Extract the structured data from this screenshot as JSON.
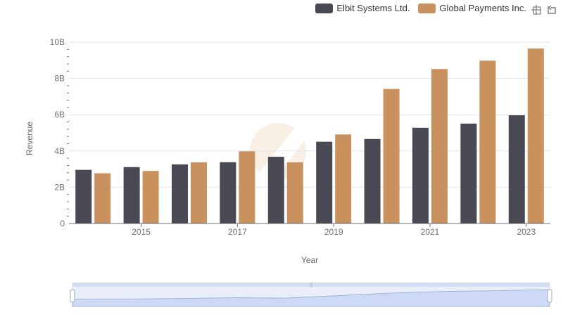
{
  "legend": [
    {
      "name": "Elbit Systems Ltd.",
      "color": "#4a4a55"
    },
    {
      "name": "Global Payments Inc.",
      "color": "#c8915e"
    }
  ],
  "toolbox": {
    "zoom_icon": "zoom-icon",
    "restore_icon": "restore-icon"
  },
  "chart_data": {
    "type": "bar",
    "xlabel": "Year",
    "ylabel": "Revenue",
    "x_tick_labels": [
      "2015",
      "2017",
      "2019",
      "2021",
      "2023"
    ],
    "y_tick_labels": [
      "0",
      "2B",
      "4B",
      "6B",
      "8B",
      "10B"
    ],
    "ylim": [
      0,
      10000000000
    ],
    "categories": [
      "2014",
      "2015",
      "2016",
      "2017",
      "2018",
      "2019",
      "2020",
      "2021",
      "2022",
      "2023"
    ],
    "series": [
      {
        "name": "Elbit Systems Ltd.",
        "color": "#4a4a55",
        "values": [
          2960000000,
          3110000000,
          3260000000,
          3380000000,
          3680000000,
          4510000000,
          4660000000,
          5280000000,
          5510000000,
          5970000000
        ]
      },
      {
        "name": "Global Payments Inc.",
        "color": "#c8915e",
        "values": [
          2770000000,
          2900000000,
          3370000000,
          3980000000,
          3370000000,
          4910000000,
          7420000000,
          8520000000,
          8980000000,
          9650000000
        ]
      }
    ],
    "grid": true,
    "legend_position": "top-right",
    "data_zoom_slider": true
  }
}
